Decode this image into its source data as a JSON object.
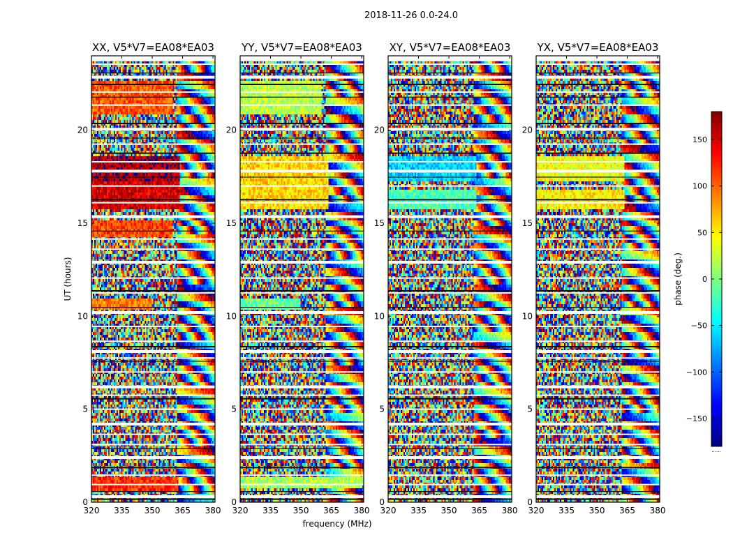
{
  "chart_data": {
    "type": "heatmap",
    "suptitle": "2018-11-26 0.0-24.0",
    "xlabel": "frequency (MHz)",
    "ylabel": "UT (hours)",
    "xlim": [
      320,
      381
    ],
    "ylim": [
      0,
      24
    ],
    "xticks": [
      320,
      335,
      350,
      365,
      380
    ],
    "yticks": [
      0,
      5,
      10,
      15,
      20
    ],
    "colorbar": {
      "label": "phase (deg.)",
      "range": [
        -180,
        180
      ],
      "ticks": [
        150,
        100,
        50,
        0,
        -50,
        -100,
        -150
      ],
      "tick_labels": [
        "150",
        "100",
        "50",
        "0",
        "−50",
        "−100",
        "−150"
      ],
      "footer": "......",
      "colormap": [
        "#00007f",
        "#0000ff",
        "#007fff",
        "#00ffff",
        "#7fff7f",
        "#ffff00",
        "#ff7f00",
        "#ff0000",
        "#7f0000"
      ]
    },
    "panels": [
      {
        "title": "XX, V5*V7=EA08*EA03",
        "bands": [
          {
            "t0": 0.55,
            "t1": 1.4,
            "phase": 120,
            "f_end": 363
          },
          {
            "t0": 10.3,
            "t1": 11.0,
            "phase": 90,
            "f_end": 350
          },
          {
            "t0": 14.3,
            "t1": 15.1,
            "phase": 110,
            "f_end": 360
          },
          {
            "t0": 15.7,
            "t1": 17.2,
            "phase": 150,
            "f_end": 364
          },
          {
            "t0": 17.3,
            "t1": 18.6,
            "phase": 165,
            "f_end": 364
          },
          {
            "t0": 20.8,
            "t1": 22.7,
            "phase": 105,
            "f_end": 360
          }
        ]
      },
      {
        "title": "YY, V5*V7=EA08*EA03",
        "bands": [
          {
            "t0": 0.7,
            "t1": 1.4,
            "phase": 15,
            "f_end": 380
          },
          {
            "t0": 10.3,
            "t1": 11.0,
            "phase": -10,
            "f_end": 350
          },
          {
            "t0": 15.7,
            "t1": 17.2,
            "phase": 58,
            "f_end": 364
          },
          {
            "t0": 17.3,
            "t1": 18.6,
            "phase": 60,
            "f_end": 364
          },
          {
            "t0": 20.8,
            "t1": 22.7,
            "phase": 20,
            "f_end": 360
          }
        ]
      },
      {
        "title": "XY, V5*V7=EA08*EA03",
        "bands": [
          {
            "t0": 15.7,
            "t1": 16.8,
            "phase": -20,
            "f_end": 364
          },
          {
            "t0": 17.3,
            "t1": 18.6,
            "phase": -60,
            "f_end": 364
          }
        ]
      },
      {
        "title": "YX, V5*V7=EA08*EA03",
        "bands": [
          {
            "t0": 15.7,
            "t1": 16.8,
            "phase": 50,
            "f_end": 364
          },
          {
            "t0": 17.3,
            "t1": 18.6,
            "phase": 40,
            "f_end": 364
          }
        ]
      }
    ],
    "flagged_rows_ut": [
      0.3,
      0.95,
      1.45,
      2.4,
      3.1,
      3.65,
      4.2,
      5.0,
      5.75,
      6.2,
      7.0,
      7.75,
      8.1,
      8.65,
      9.45,
      10.2,
      11.25,
      12.05,
      12.9,
      13.6,
      14.15,
      15.35,
      16.1,
      17.0,
      17.8,
      18.3,
      19.25,
      20.05,
      21.35,
      22.05,
      22.85,
      23.55,
      23.75
    ],
    "dark_rows_ut": [
      0.2,
      0.6,
      1.9,
      2.9,
      5.6,
      7.6,
      8.4,
      10.5,
      11.4,
      14.6,
      16.3,
      17.5,
      18.8,
      19.6,
      20.4,
      21.8,
      22.5,
      23.1
    ]
  }
}
